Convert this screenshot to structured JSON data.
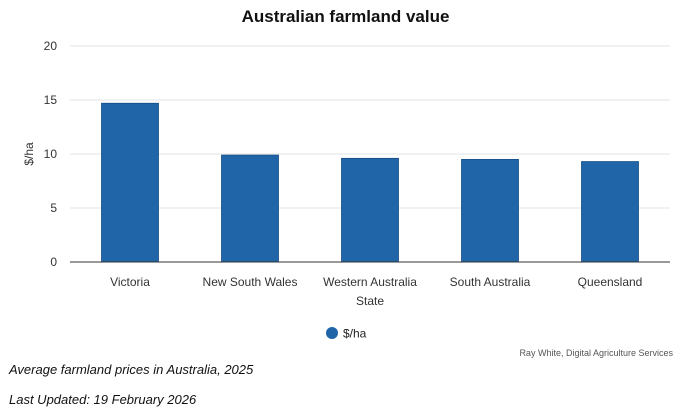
{
  "chart_data": {
    "type": "bar",
    "title": "Australian farmland value",
    "xlabel": "State",
    "ylabel": "$/ha",
    "categories": [
      "Victoria",
      "New South Wales",
      "Western Australia",
      "South Australia",
      "Queensland"
    ],
    "series": [
      {
        "name": "$/ha",
        "values": [
          14.7,
          9.9,
          9.6,
          9.5,
          9.3
        ]
      }
    ],
    "ylim": [
      0,
      20
    ],
    "yticks": [
      0,
      5,
      10,
      15,
      20
    ],
    "grid": true,
    "legend": "bottom-center",
    "bar_color": "#1f65a8"
  },
  "source": "Ray White, Digital Agriculture Services",
  "caption": "Average farmland prices in Australia, 2025",
  "last_updated": "Last Updated: 19 February 2026"
}
